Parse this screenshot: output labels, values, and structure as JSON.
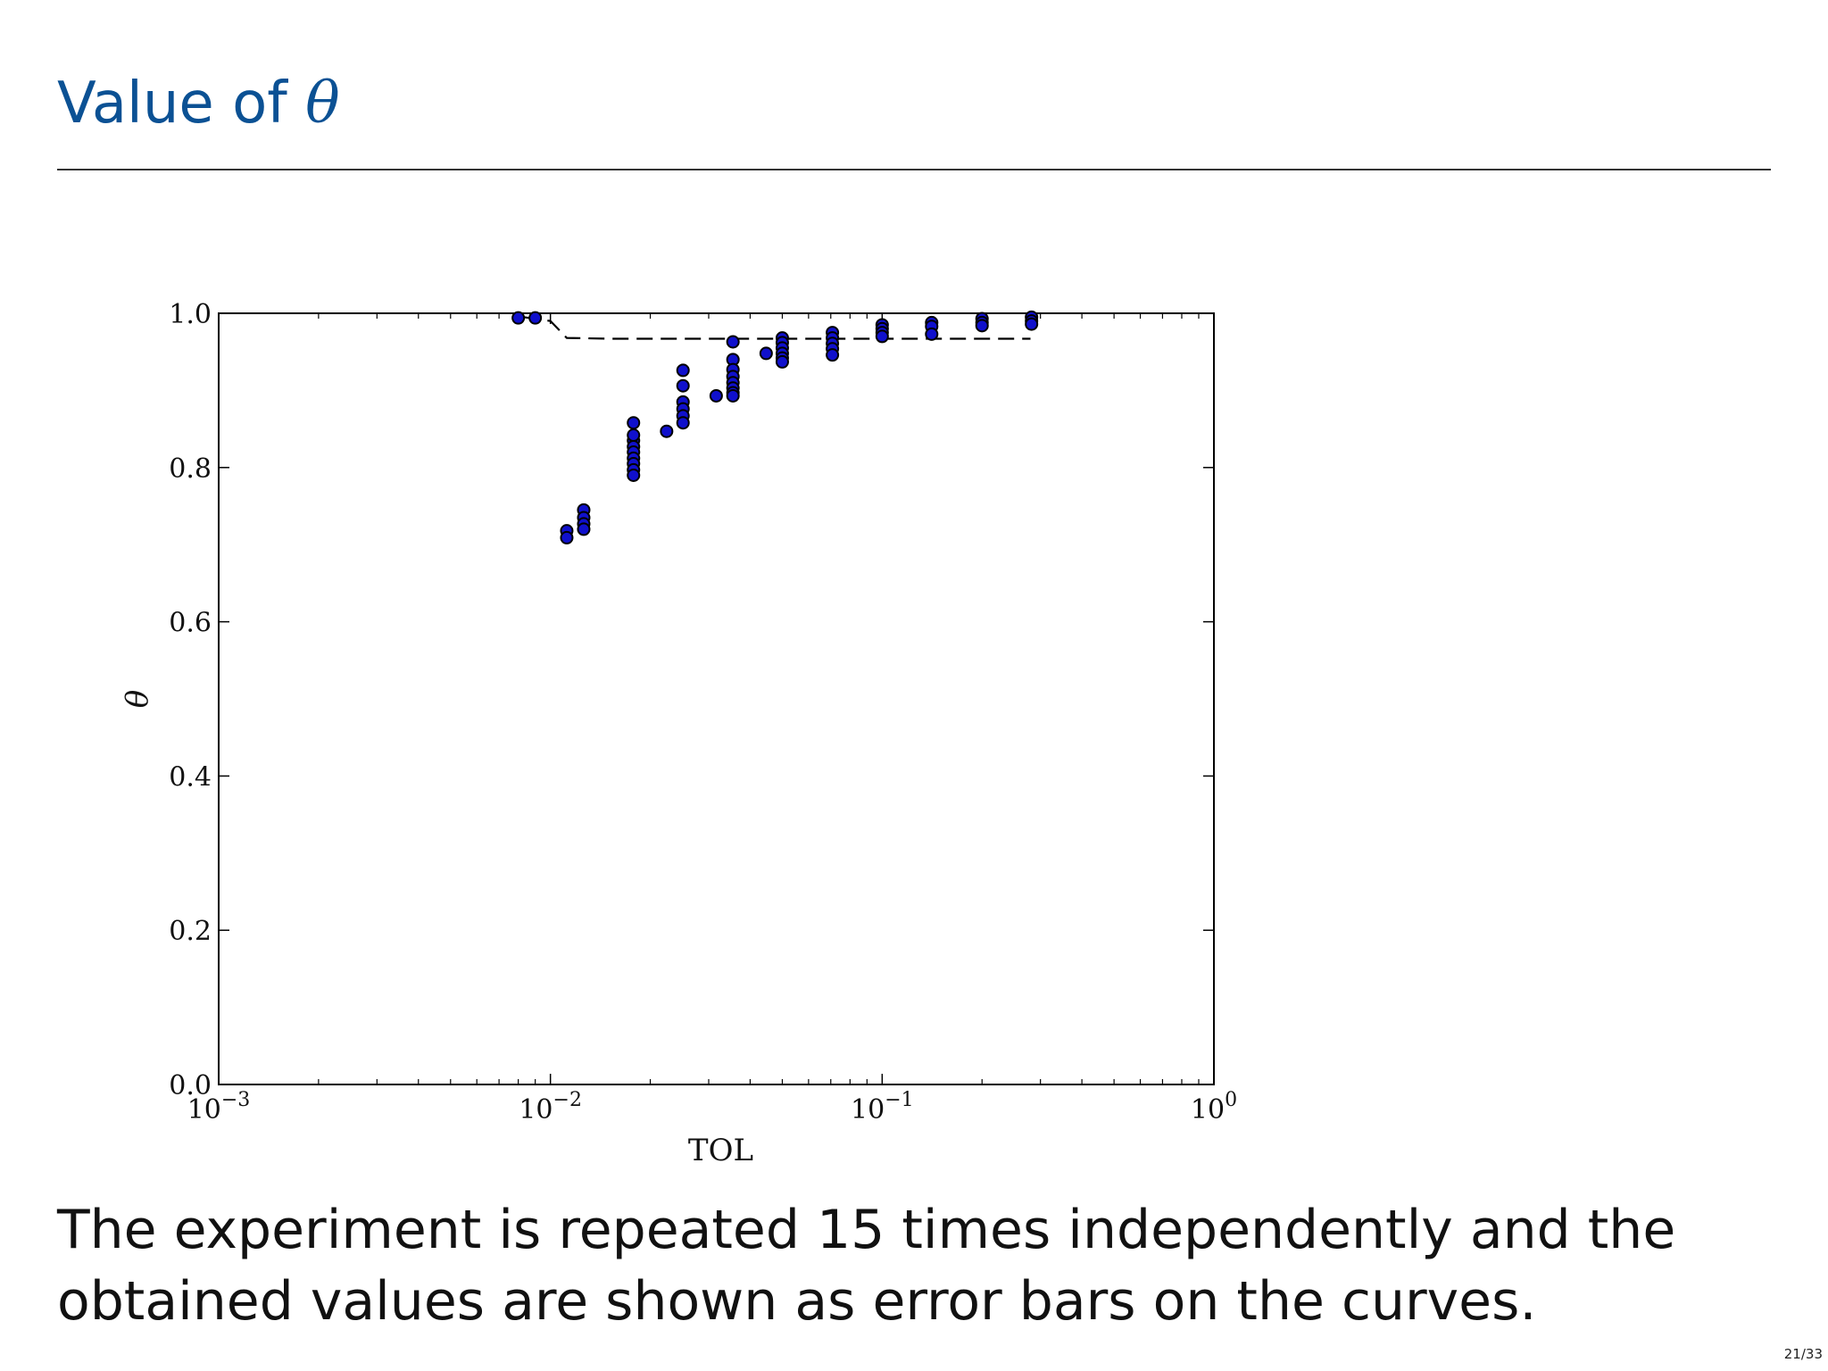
{
  "slide": {
    "title_prefix": "Value of ",
    "title_symbol": "θ",
    "body": "The experiment is repeated 15 times independently and the obtained values are shown as error bars on the curves.",
    "page_number": "21/33"
  },
  "colors": {
    "title": "#0b5194",
    "marker_fill": "#1010cc",
    "marker_edge": "#000000"
  },
  "chart_data": {
    "type": "scatter",
    "xlabel": "TOL",
    "ylabel": "θ",
    "xscale": "log",
    "xlim": [
      0.001,
      1
    ],
    "ylim": [
      0,
      1
    ],
    "x_ticks": [
      {
        "value": 0.001,
        "base": "10",
        "exp": "−3"
      },
      {
        "value": 0.01,
        "base": "10",
        "exp": "−2"
      },
      {
        "value": 0.1,
        "base": "10",
        "exp": "−1"
      },
      {
        "value": 1,
        "base": "10",
        "exp": "0"
      }
    ],
    "y_ticks": [
      {
        "value": 0,
        "label": "0.0"
      },
      {
        "value": 0.2,
        "label": "0.2"
      },
      {
        "value": 0.4,
        "label": "0.4"
      },
      {
        "value": 0.6,
        "label": "0.6"
      },
      {
        "value": 0.8,
        "label": "0.8"
      },
      {
        "value": 1,
        "label": "1.0"
      }
    ],
    "grid": false,
    "legend": "none",
    "dashed_curve": {
      "x": [
        0.0083,
        0.01,
        0.0112,
        0.015,
        0.02,
        0.03,
        0.05,
        0.07,
        0.1,
        0.15,
        0.2,
        0.28
      ],
      "y": [
        0.995,
        0.99,
        0.968,
        0.967,
        0.967,
        0.967,
        0.967,
        0.967,
        0.967,
        0.967,
        0.967,
        0.967
      ]
    },
    "series": [
      {
        "x": [
          0.008,
          0.009
        ],
        "y": [
          0.994,
          0.994
        ]
      },
      {
        "x": [
          0.0112,
          0.0112,
          0.0126,
          0.0126,
          0.0126,
          0.0126
        ],
        "y": [
          0.718,
          0.709,
          0.745,
          0.735,
          0.727,
          0.72
        ]
      },
      {
        "x": [
          0.0178,
          0.0178,
          0.0178,
          0.0178,
          0.0178,
          0.0178,
          0.0178,
          0.0178,
          0.0178
        ],
        "y": [
          0.858,
          0.835,
          0.827,
          0.82,
          0.812,
          0.805,
          0.797,
          0.79,
          0.842
        ]
      },
      {
        "x": [
          0.0224,
          0.0251,
          0.0251,
          0.0251,
          0.0251,
          0.0251,
          0.0251
        ],
        "y": [
          0.847,
          0.926,
          0.906,
          0.885,
          0.876,
          0.867,
          0.858
        ]
      },
      {
        "x": [
          0.0316,
          0.0355,
          0.0355,
          0.0355,
          0.0355,
          0.0355,
          0.0355,
          0.0355,
          0.0355
        ],
        "y": [
          0.893,
          0.963,
          0.94,
          0.927,
          0.918,
          0.91,
          0.903,
          0.897,
          0.893
        ]
      },
      {
        "x": [
          0.0447,
          0.05,
          0.05,
          0.05,
          0.05,
          0.05,
          0.05
        ],
        "y": [
          0.948,
          0.968,
          0.962,
          0.955,
          0.948,
          0.942,
          0.937
        ]
      },
      {
        "x": [
          0.0708,
          0.0708,
          0.0708,
          0.0708,
          0.0708
        ],
        "y": [
          0.975,
          0.968,
          0.961,
          0.954,
          0.946
        ]
      },
      {
        "x": [
          0.1,
          0.1,
          0.1,
          0.1
        ],
        "y": [
          0.985,
          0.98,
          0.975,
          0.97
        ]
      },
      {
        "x": [
          0.141,
          0.141,
          0.141
        ],
        "y": [
          0.988,
          0.983,
          0.973
        ]
      },
      {
        "x": [
          0.2,
          0.2,
          0.2
        ],
        "y": [
          0.993,
          0.988,
          0.984
        ]
      },
      {
        "x": [
          0.282,
          0.282,
          0.282
        ],
        "y": [
          0.995,
          0.99,
          0.986
        ]
      }
    ]
  }
}
